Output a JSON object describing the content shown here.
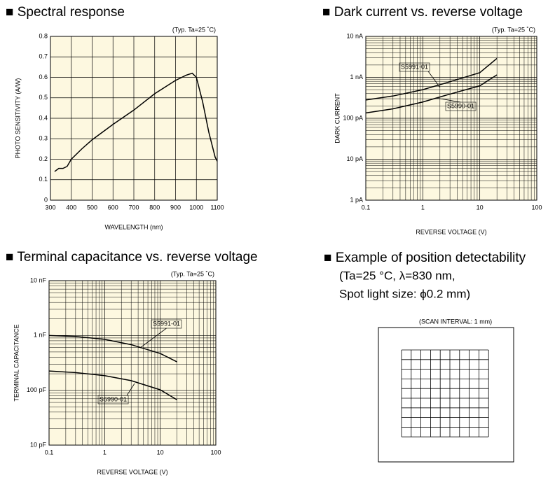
{
  "chart_data": [
    {
      "type": "line",
      "title": "■ Spectral response",
      "annotation": "(Typ. Ta=25 ˚C)",
      "xlabel": "WAVELENGTH (nm)",
      "ylabel": "PHOTO SENSITIVITY (A/W)",
      "x": [
        320,
        340,
        360,
        380,
        400,
        450,
        500,
        600,
        700,
        800,
        900,
        950,
        980,
        1000,
        1030,
        1060,
        1090,
        1100
      ],
      "values": [
        0.14,
        0.155,
        0.155,
        0.165,
        0.2,
        0.25,
        0.295,
        0.37,
        0.44,
        0.52,
        0.585,
        0.61,
        0.62,
        0.6,
        0.48,
        0.33,
        0.21,
        0.19
      ],
      "color": "#000000",
      "background": "#fdf8e0",
      "xlim": [
        300,
        1100
      ],
      "xticks": [
        300,
        400,
        500,
        600,
        700,
        800,
        900,
        1000,
        1100
      ],
      "ylim": [
        0,
        0.8
      ],
      "yticks": [
        0,
        0.1,
        0.2,
        0.3,
        0.4,
        0.5,
        0.6,
        0.7,
        0.8
      ],
      "grid": true
    },
    {
      "type": "line",
      "title": "■ Dark current vs. reverse voltage",
      "annotation": "(Typ. Ta=25 ˚C)",
      "xlabel": "REVERSE VOLTAGE (V)",
      "ylabel": "DARK CURRENT",
      "x": [
        0.1,
        0.3,
        1,
        3,
        10,
        20
      ],
      "series": [
        {
          "name": "S5991-01",
          "color": "#000000",
          "values": [
            280,
            350,
            500,
            780,
            1300,
            2900
          ]
        },
        {
          "name": "S5990-01",
          "color": "#000000",
          "values": [
            135,
            170,
            250,
            390,
            620,
            1150
          ]
        }
      ],
      "background": "#fdf8e0",
      "log_x": true,
      "log_y": true,
      "xlim": [
        0.1,
        100
      ],
      "xticks": [
        0.1,
        1,
        10,
        100
      ],
      "ylim": [
        1,
        10000
      ],
      "yticks": [
        {
          "value": 1,
          "label": "1 pA"
        },
        {
          "value": 10,
          "label": "10 pA"
        },
        {
          "value": 100,
          "label": "100 pA"
        },
        {
          "value": 1000,
          "label": "1 nA"
        },
        {
          "value": 10000,
          "label": "10 nA"
        }
      ],
      "grid": true
    },
    {
      "type": "line",
      "title": "■ Terminal capacitance vs. reverse voltage",
      "annotation": "(Typ. Ta=25 ˚C)",
      "xlabel": "REVERSE VOLTAGE (V)",
      "ylabel": "TERMINAL CAPACITANCE",
      "x": [
        0.1,
        0.3,
        1,
        3,
        10,
        20
      ],
      "series": [
        {
          "name": "S5991-01",
          "color": "#000000",
          "values": [
            1000,
            960,
            850,
            680,
            470,
            330
          ]
        },
        {
          "name": "S5990-01",
          "color": "#000000",
          "values": [
            225,
            210,
            185,
            150,
            102,
            67
          ]
        }
      ],
      "background": "#fdf8e0",
      "log_x": true,
      "log_y": true,
      "xlim": [
        0.1,
        100
      ],
      "xticks": [
        0.1,
        1,
        10,
        100
      ],
      "ylim": [
        10,
        10000
      ],
      "yticks": [
        {
          "value": 10,
          "label": "10 pF"
        },
        {
          "value": 100,
          "label": "100 pF"
        },
        {
          "value": 1000,
          "label": "1 nF"
        },
        {
          "value": 10000,
          "label": "10 nF"
        }
      ],
      "grid": true
    }
  ],
  "position_example": {
    "title": "■ Example of position detectability",
    "lines": [
      "(Ta=25 °C, λ=830 nm,",
      "Spot light size: ϕ0.2 mm)"
    ],
    "scan_interval": "(SCAN INTERVAL: 1 mm)"
  }
}
